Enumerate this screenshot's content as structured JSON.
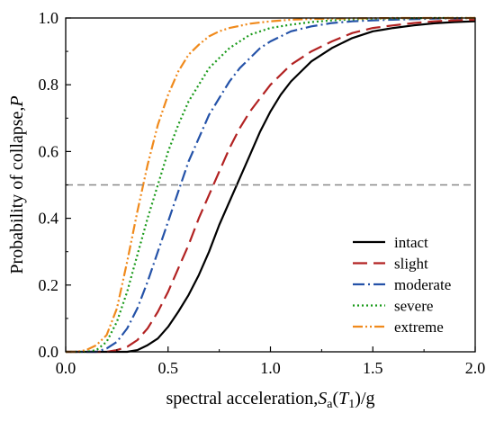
{
  "chart_data": {
    "type": "line",
    "xlabel": {
      "main": "spectral acceleration,",
      "var": "S",
      "sub": "a",
      "open": "(",
      "var2": "T",
      "sub2": "1",
      "close": ")/g"
    },
    "ylabel": {
      "main": "Probability of collapse,",
      "var": "P"
    },
    "xlim": [
      0.0,
      2.0
    ],
    "ylim": [
      0.0,
      1.0
    ],
    "xticks": [
      0.0,
      0.5,
      1.0,
      1.5,
      2.0
    ],
    "xtick_labels": [
      "0.0",
      "0.5",
      "1.0",
      "1.5",
      "2.0"
    ],
    "yticks": [
      0.0,
      0.2,
      0.4,
      0.6,
      0.8,
      1.0
    ],
    "ytick_labels": [
      "0.0",
      "0.2",
      "0.4",
      "0.6",
      "0.8",
      "1.0"
    ],
    "grid": false,
    "legend_position": "bottom-right",
    "reference_line": {
      "y": 0.5,
      "color": "#888888",
      "style": "dashed"
    },
    "series": [
      {
        "name": "intact",
        "color": "#000000",
        "dash": "solid",
        "x": [
          0.0,
          0.2,
          0.3,
          0.35,
          0.4,
          0.45,
          0.5,
          0.55,
          0.6,
          0.65,
          0.7,
          0.75,
          0.8,
          0.85,
          0.9,
          0.95,
          1.0,
          1.05,
          1.1,
          1.15,
          1.2,
          1.25,
          1.3,
          1.35,
          1.4,
          1.45,
          1.5,
          1.55,
          1.6,
          1.7,
          1.8,
          1.9,
          2.0
        ],
        "y": [
          0.0,
          0.0,
          0.0,
          0.005,
          0.02,
          0.04,
          0.075,
          0.12,
          0.17,
          0.23,
          0.3,
          0.38,
          0.45,
          0.52,
          0.59,
          0.66,
          0.72,
          0.77,
          0.81,
          0.84,
          0.87,
          0.89,
          0.91,
          0.925,
          0.94,
          0.95,
          0.96,
          0.965,
          0.97,
          0.978,
          0.984,
          0.988,
          0.99
        ]
      },
      {
        "name": "slight",
        "color": "#b22222",
        "dash": "long-dash",
        "x": [
          0.0,
          0.2,
          0.25,
          0.3,
          0.35,
          0.4,
          0.45,
          0.5,
          0.55,
          0.6,
          0.65,
          0.7,
          0.75,
          0.8,
          0.85,
          0.9,
          0.95,
          1.0,
          1.1,
          1.2,
          1.3,
          1.4,
          1.5,
          1.6,
          1.7,
          1.8,
          1.9,
          2.0
        ],
        "y": [
          0.0,
          0.0,
          0.005,
          0.015,
          0.035,
          0.07,
          0.12,
          0.18,
          0.25,
          0.32,
          0.4,
          0.47,
          0.54,
          0.61,
          0.67,
          0.72,
          0.76,
          0.8,
          0.86,
          0.9,
          0.93,
          0.955,
          0.97,
          0.978,
          0.985,
          0.99,
          0.993,
          0.995
        ]
      },
      {
        "name": "moderate",
        "color": "#2452a8",
        "dash": "dash-dot",
        "x": [
          0.0,
          0.15,
          0.2,
          0.25,
          0.3,
          0.35,
          0.4,
          0.45,
          0.5,
          0.55,
          0.6,
          0.65,
          0.7,
          0.75,
          0.8,
          0.85,
          0.9,
          0.95,
          1.0,
          1.1,
          1.2,
          1.3,
          1.4,
          1.5,
          1.6,
          1.8,
          2.0
        ],
        "y": [
          0.0,
          0.0,
          0.01,
          0.03,
          0.07,
          0.13,
          0.21,
          0.3,
          0.39,
          0.48,
          0.57,
          0.64,
          0.71,
          0.76,
          0.81,
          0.85,
          0.88,
          0.91,
          0.93,
          0.96,
          0.975,
          0.985,
          0.99,
          0.993,
          0.995,
          0.998,
          1.0
        ]
      },
      {
        "name": "severe",
        "color": "#1a9a1a",
        "dash": "dotted",
        "x": [
          0.0,
          0.1,
          0.15,
          0.2,
          0.25,
          0.3,
          0.35,
          0.4,
          0.45,
          0.5,
          0.55,
          0.6,
          0.65,
          0.7,
          0.75,
          0.8,
          0.85,
          0.9,
          1.0,
          1.1,
          1.2,
          1.3,
          1.4,
          1.5,
          1.6,
          1.8,
          2.0
        ],
        "y": [
          0.0,
          0.0,
          0.005,
          0.03,
          0.09,
          0.18,
          0.29,
          0.4,
          0.5,
          0.6,
          0.68,
          0.75,
          0.8,
          0.85,
          0.88,
          0.91,
          0.93,
          0.95,
          0.97,
          0.98,
          0.988,
          0.993,
          0.996,
          0.998,
          0.999,
          1.0,
          1.0
        ]
      },
      {
        "name": "extreme",
        "color": "#f08a1c",
        "dash": "dash-dot-dot",
        "x": [
          0.0,
          0.05,
          0.1,
          0.15,
          0.2,
          0.25,
          0.3,
          0.35,
          0.4,
          0.45,
          0.5,
          0.55,
          0.6,
          0.65,
          0.7,
          0.75,
          0.8,
          0.9,
          1.0,
          1.1,
          1.2,
          1.3,
          1.4,
          1.6,
          1.8,
          2.0
        ],
        "y": [
          0.0,
          0.0,
          0.005,
          0.02,
          0.05,
          0.13,
          0.27,
          0.42,
          0.56,
          0.68,
          0.77,
          0.84,
          0.89,
          0.92,
          0.945,
          0.96,
          0.97,
          0.983,
          0.99,
          0.995,
          0.997,
          0.998,
          0.999,
          1.0,
          1.0,
          1.0
        ]
      }
    ]
  }
}
